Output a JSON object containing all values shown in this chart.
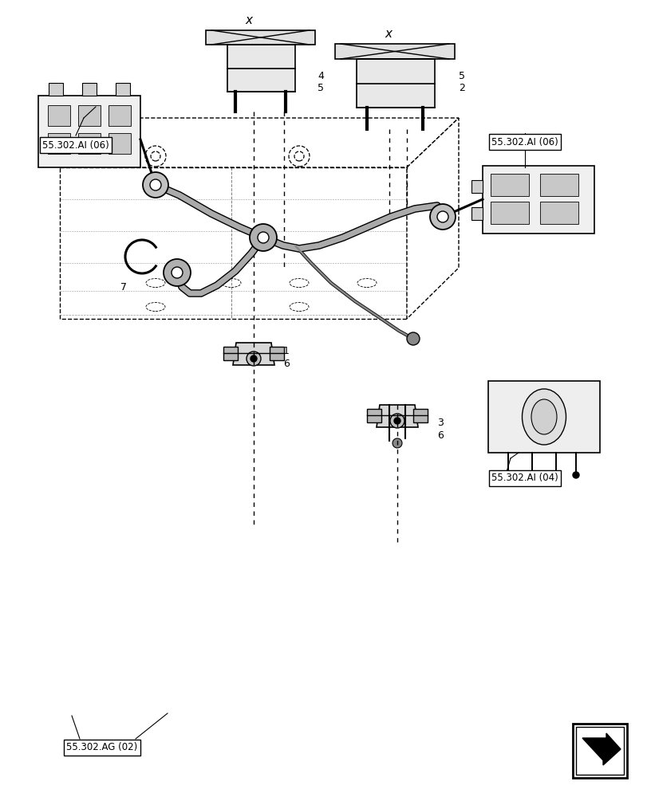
{
  "title": "",
  "background_color": "#ffffff",
  "line_color": "#000000",
  "label_color": "#000000",
  "labels": {
    "55302AI06_left": "55.302.AI (06)",
    "55302AI06_right": "55.302.AI (06)",
    "55302AI04": "55.302.AI (04)",
    "55302AG02": "55.302.AG (02)"
  },
  "figsize": [
    8.12,
    10.0
  ],
  "dpi": 100
}
